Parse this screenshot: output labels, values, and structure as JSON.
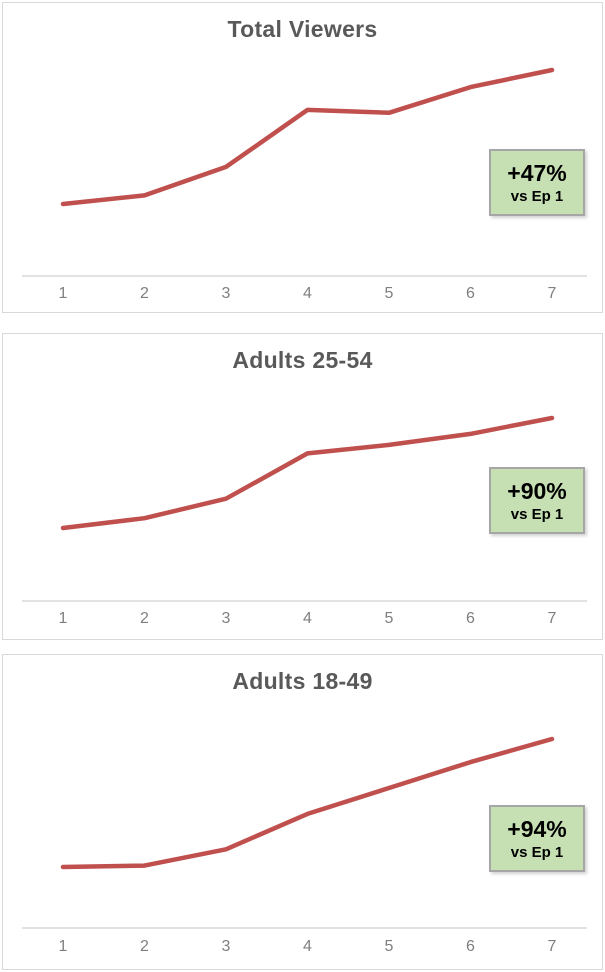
{
  "colors": {
    "line": "#C0504D",
    "badge_bg": "#C6E0B4",
    "badge_border": "#A6A6A6",
    "title_text": "#595959",
    "tick_text": "#7F7F7F",
    "axis_line": "#D9D9D9",
    "panel_border": "#D9D9D9",
    "badge_text": "#000000"
  },
  "chart_data": [
    {
      "type": "line",
      "title": "Total Viewers",
      "categories": [
        "1",
        "2",
        "3",
        "4",
        "5",
        "6",
        "7"
      ],
      "xlabel": "",
      "ylabel": "",
      "grid": false,
      "y_axis_labels_visible": false,
      "legend_position": "none",
      "value_basis": "indexed, Episode 1 = 100 (estimated from line heights; endpoint anchored by +47% label)",
      "series": [
        {
          "name": "Total Viewers",
          "values": [
            100,
            103,
            113,
            133,
            132,
            141,
            147
          ]
        }
      ],
      "annotation": {
        "headline": "+47%",
        "subline": "vs Ep 1"
      }
    },
    {
      "type": "line",
      "title": "Adults 25-54",
      "categories": [
        "1",
        "2",
        "3",
        "4",
        "5",
        "6",
        "7"
      ],
      "xlabel": "",
      "ylabel": "",
      "grid": false,
      "y_axis_labels_visible": false,
      "legend_position": "none",
      "value_basis": "indexed, Episode 1 = 100 (estimated from line heights; endpoint anchored by +90% label)",
      "series": [
        {
          "name": "Adults 25-54",
          "values": [
            100,
            108,
            124,
            161,
            168,
            177,
            190
          ]
        }
      ],
      "annotation": {
        "headline": "+90%",
        "subline": "vs Ep 1"
      }
    },
    {
      "type": "line",
      "title": "Adults 18-49",
      "categories": [
        "1",
        "2",
        "3",
        "4",
        "5",
        "6",
        "7"
      ],
      "xlabel": "",
      "ylabel": "",
      "grid": false,
      "y_axis_labels_visible": false,
      "legend_position": "none",
      "value_basis": "indexed, Episode 1 = 100 (estimated from line heights; endpoint anchored by +94% label)",
      "series": [
        {
          "name": "Adults 18-49",
          "values": [
            100,
            101,
            113,
            139,
            158,
            177,
            194
          ]
        }
      ],
      "annotation": {
        "headline": "+94%",
        "subline": "vs Ep 1"
      }
    }
  ]
}
